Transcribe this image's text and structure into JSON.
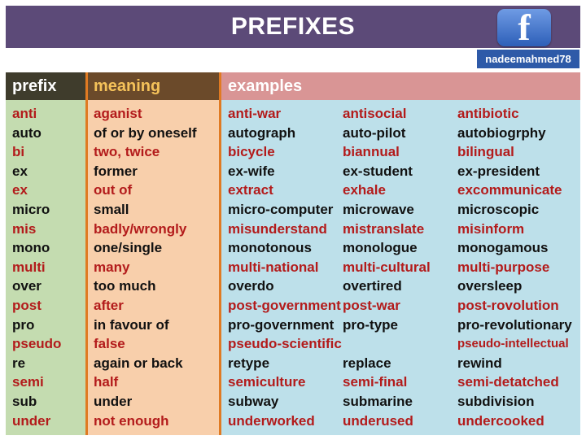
{
  "title": "PREFIXES",
  "facebook": {
    "logo_letter": "f",
    "handle": "nadeemahmed78"
  },
  "headers": {
    "prefix": "prefix",
    "meaning": "meaning",
    "examples": "examples"
  },
  "colors": {
    "title_bar": "#5c4a78",
    "red_text": "#b31b1b",
    "prefix_col": "#c4dcb0",
    "meaning_col": "#f8cfab",
    "examples_col": "#bde0ea",
    "separator": "#e07a22"
  },
  "rows": [
    {
      "prefix": "anti",
      "meaning": "aganist",
      "examples": [
        "anti-war",
        "antisocial",
        "antibiotic"
      ]
    },
    {
      "prefix": "auto",
      "meaning": "of or by oneself",
      "examples": [
        "autograph",
        "auto-pilot",
        "autobiogrphy"
      ]
    },
    {
      "prefix": "bi",
      "meaning": "two, twice",
      "examples": [
        "bicycle",
        "biannual",
        "bilingual"
      ]
    },
    {
      "prefix": "ex",
      "meaning": "former",
      "examples": [
        "ex-wife",
        "ex-student",
        "ex-president"
      ]
    },
    {
      "prefix": "ex",
      "meaning": "out of",
      "examples": [
        "extract",
        "exhale",
        "excommunicate"
      ]
    },
    {
      "prefix": "micro",
      "meaning": "small",
      "examples": [
        "micro-computer",
        "microwave",
        "microscopic"
      ]
    },
    {
      "prefix": "mis",
      "meaning": "badly/wrongly",
      "examples": [
        "misunderstand",
        "mistranslate",
        "misinform"
      ]
    },
    {
      "prefix": "mono",
      "meaning": "one/single",
      "examples": [
        "monotonous",
        "monologue",
        "monogamous"
      ]
    },
    {
      "prefix": "multi",
      "meaning": "many",
      "examples": [
        "multi-national",
        "multi-cultural",
        "multi-purpose"
      ]
    },
    {
      "prefix": "over",
      "meaning": "too much",
      "examples": [
        "overdo",
        "overtired",
        "oversleep"
      ]
    },
    {
      "prefix": "post",
      "meaning": "after",
      "examples": [
        "post-government",
        "post-war",
        "post-rovolution"
      ]
    },
    {
      "prefix": "pro",
      "meaning": "in favour of",
      "examples": [
        "pro-government",
        "pro-type",
        "pro-revolutionary"
      ]
    },
    {
      "prefix": "pseudo",
      "meaning": "false",
      "examples": [
        "pseudo-scientific",
        "",
        "pseudo-intellectual"
      ]
    },
    {
      "prefix": "re",
      "meaning": "again or back",
      "examples": [
        "retype",
        "replace",
        "rewind"
      ]
    },
    {
      "prefix": "semi",
      "meaning": "half",
      "examples": [
        "semiculture",
        "semi-final",
        "semi-detatched"
      ]
    },
    {
      "prefix": "sub",
      "meaning": "under",
      "examples": [
        "subway",
        "submarine",
        "subdivision"
      ]
    },
    {
      "prefix": "under",
      "meaning": "not enough",
      "examples": [
        "underworked",
        "underused",
        "undercooked"
      ]
    }
  ]
}
